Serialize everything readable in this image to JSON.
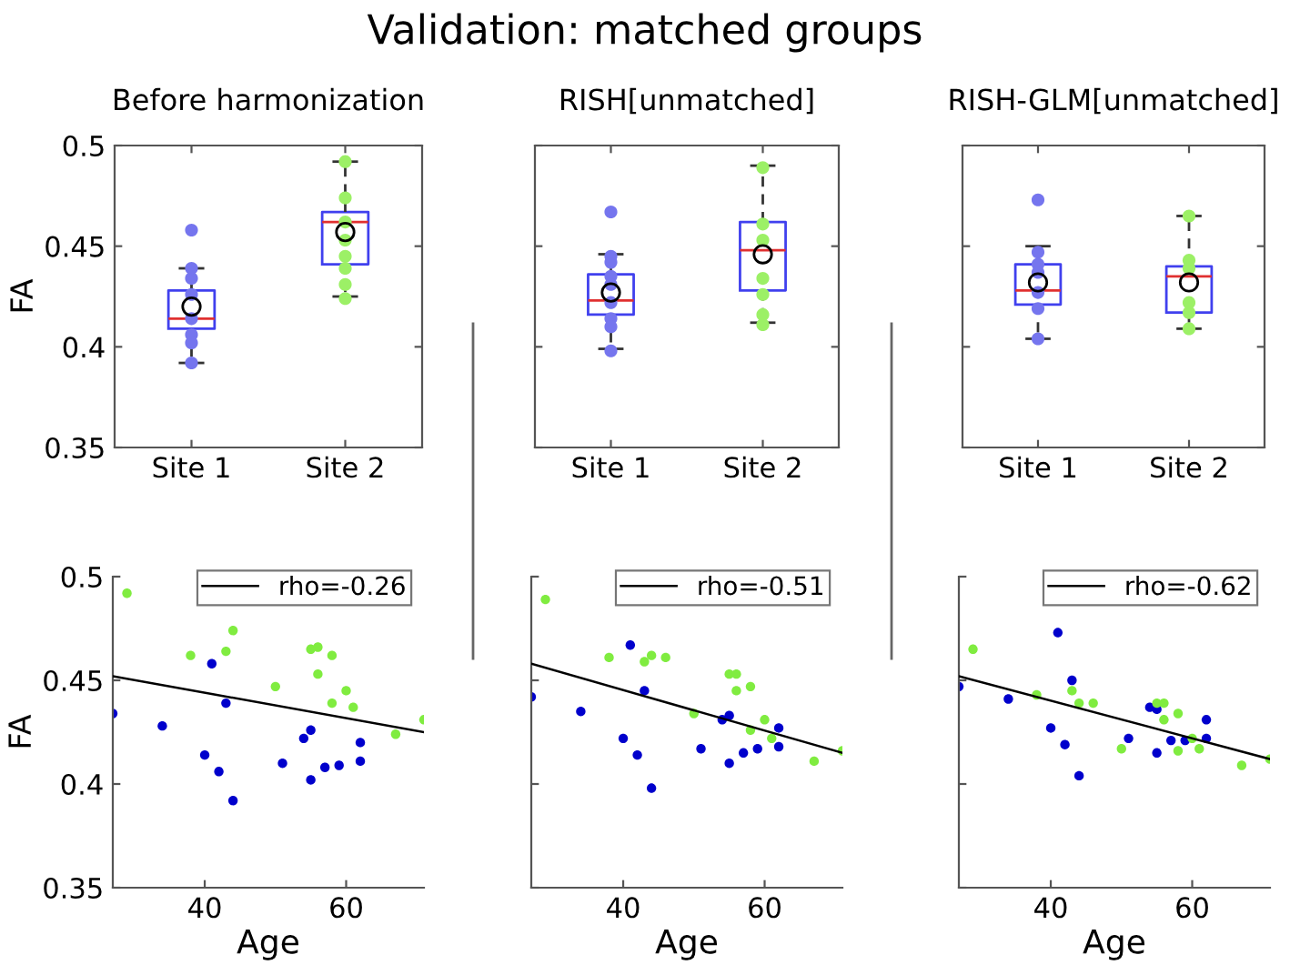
{
  "chart_data": [
    {
      "type": "box",
      "title": "Before harmonization",
      "ylabel": "FA",
      "annotations": [
        "Validation: matched groups"
      ],
      "categories": [
        "Site 1",
        "Site 2"
      ],
      "ylim": [
        0.35,
        0.5
      ],
      "yticks": [
        0.35,
        0.4,
        0.45,
        0.5
      ],
      "grid": false,
      "legend": false,
      "boxes": [
        {
          "low": 0.392,
          "q1": 0.409,
          "median": 0.414,
          "q3": 0.428,
          "high": 0.439,
          "mean": 0.42
        },
        {
          "low": 0.425,
          "q1": 0.441,
          "median": 0.462,
          "q3": 0.467,
          "high": 0.492,
          "mean": 0.457
        }
      ],
      "series": [
        {
          "type": "scatter",
          "x": [
            "Site 1",
            "Site 1",
            "Site 1",
            "Site 1",
            "Site 1",
            "Site 1",
            "Site 1",
            "Site 1",
            "Site 1",
            "Site 1",
            "Site 1",
            "Site 1",
            "Site 1",
            "Site 1",
            "Site 1"
          ],
          "color": "#7575ee",
          "values": [
            0.434,
            null,
            0.414,
            0.458,
            0.406,
            0.439,
            0.392,
            null,
            null,
            0.426,
            0.402,
            null,
            null,
            null,
            null
          ]
        },
        {
          "type": "scatter",
          "x": [
            "Site 2",
            "Site 2",
            "Site 2",
            "Site 2",
            "Site 2",
            "Site 2",
            "Site 2",
            "Site 2",
            "Site 2",
            "Site 2",
            "Site 2",
            "Site 2",
            "Site 2",
            "Site 2"
          ],
          "color": "#9cf066",
          "values": [
            0.492,
            0.462,
            null,
            0.474,
            null,
            null,
            null,
            0.453,
            null,
            0.439,
            0.445,
            null,
            0.424,
            0.431
          ]
        }
      ]
    },
    {
      "type": "box",
      "title": "RISH[unmatched]",
      "categories": [
        "Site 1",
        "Site 2"
      ],
      "ylim": [
        0.35,
        0.5
      ],
      "yticks": [
        0.35,
        0.4,
        0.45,
        0.5
      ],
      "tick_labels": "x",
      "grid": false,
      "legend": false,
      "boxes": [
        {
          "low": 0.399,
          "q1": 0.416,
          "median": 0.423,
          "q3": 0.436,
          "high": 0.446,
          "mean": 0.427
        },
        {
          "low": 0.412,
          "q1": 0.428,
          "median": 0.448,
          "q3": 0.462,
          "high": 0.49,
          "mean": 0.446
        }
      ],
      "series": [
        {
          "type": "scatter",
          "x": [
            "Site 1",
            "Site 1",
            "Site 1",
            "Site 1",
            "Site 1",
            "Site 1",
            "Site 1",
            "Site 1",
            "Site 1",
            "Site 1",
            "Site 1",
            "Site 1",
            "Site 1",
            "Site 1",
            "Site 1"
          ],
          "color": "#7575ee",
          "values": [
            0.442,
            0.435,
            0.422,
            0.467,
            0.414,
            0.445,
            0.398,
            null,
            0.431,
            null,
            0.41,
            null,
            null,
            null,
            null
          ]
        },
        {
          "type": "scatter",
          "x": [
            "Site 2",
            "Site 2",
            "Site 2",
            "Site 2",
            "Site 2",
            "Site 2",
            "Site 2",
            "Site 2",
            "Site 2",
            "Site 2",
            "Site 2",
            "Site 2",
            "Site 2",
            "Site 2",
            "Site 2"
          ],
          "color": "#9cf066",
          "values": [
            0.489,
            0.461,
            null,
            null,
            null,
            0.434,
            0.453,
            null,
            null,
            null,
            0.426,
            null,
            null,
            0.411,
            0.416
          ]
        }
      ]
    },
    {
      "type": "box",
      "title": "RISH-GLM[unmatched]",
      "categories": [
        "Site 1",
        "Site 2"
      ],
      "ylim": [
        0.35,
        0.5
      ],
      "yticks": [
        0.35,
        0.4,
        0.45,
        0.5
      ],
      "tick_labels": "x",
      "grid": false,
      "legend": false,
      "boxes": [
        {
          "low": 0.404,
          "q1": 0.421,
          "median": 0.428,
          "q3": 0.441,
          "high": 0.45,
          "mean": 0.432
        },
        {
          "low": 0.409,
          "q1": 0.417,
          "median": 0.435,
          "q3": 0.44,
          "high": 0.465,
          "mean": 0.432
        }
      ],
      "series": [
        {
          "type": "scatter",
          "x": [
            "Site 1",
            "Site 1",
            "Site 1",
            "Site 1",
            "Site 1",
            "Site 1",
            "Site 1",
            "Site 1",
            "Site 1",
            "Site 1",
            "Site 1",
            "Site 1",
            "Site 1",
            "Site 1",
            "Site 1"
          ],
          "color": "#7575ee",
          "values": [
            0.447,
            0.441,
            0.427,
            0.473,
            0.419,
            null,
            0.404,
            null,
            0.437,
            null,
            null,
            null,
            null,
            null,
            null
          ]
        },
        {
          "type": "scatter",
          "x": [
            "Site 2",
            "Site 2",
            "Site 2",
            "Site 2",
            "Site 2",
            "Site 2",
            "Site 2",
            "Site 2",
            "Site 2",
            "Site 2",
            "Site 2",
            "Site 2",
            "Site 2",
            "Site 2",
            "Site 2"
          ],
          "color": "#9cf066",
          "values": [
            0.465,
            0.443,
            null,
            null,
            null,
            0.417,
            0.439,
            null,
            null,
            null,
            null,
            0.422,
            null,
            0.409,
            null
          ]
        }
      ]
    },
    {
      "type": "scatter",
      "xlabel": "Age",
      "ylabel": "FA",
      "xlim": [
        27,
        71
      ],
      "xticks": [
        40,
        60
      ],
      "ylim": [
        0.35,
        0.5
      ],
      "yticks": [
        0.35,
        0.4,
        0.45,
        0.5
      ],
      "grid": false,
      "legend": "top right",
      "series": [
        {
          "x": [
            27,
            34,
            40,
            41,
            42,
            43,
            44,
            51,
            54,
            55,
            55,
            57,
            59,
            62,
            62
          ],
          "color": "#0000cc",
          "values": [
            0.434,
            0.428,
            0.414,
            0.458,
            0.406,
            0.439,
            0.392,
            0.41,
            0.422,
            0.426,
            0.402,
            0.408,
            0.409,
            0.42,
            0.411
          ]
        },
        {
          "x": [
            29,
            38,
            43,
            44,
            50,
            55,
            56,
            56,
            58,
            58,
            60,
            61,
            67,
            71
          ],
          "color": "#80ec40",
          "values": [
            0.492,
            0.462,
            0.464,
            0.474,
            0.447,
            0.465,
            0.466,
            0.453,
            0.462,
            0.439,
            0.445,
            0.437,
            0.424,
            0.431
          ]
        },
        {
          "type": "line",
          "name": "rho=-0.26",
          "x": [
            27,
            71
          ],
          "color": "#000000",
          "values": [
            0.452,
            0.425
          ]
        }
      ]
    },
    {
      "type": "scatter",
      "xlabel": "Age",
      "xlim": [
        27,
        71
      ],
      "xticks": [
        40,
        60
      ],
      "ylim": [
        0.35,
        0.5
      ],
      "yticks": [
        0.35,
        0.4,
        0.45,
        0.5
      ],
      "tick_labels": "x",
      "grid": false,
      "legend": "top right",
      "series": [
        {
          "x": [
            27,
            34,
            40,
            41,
            42,
            43,
            44,
            51,
            54,
            55,
            55,
            57,
            59,
            62,
            62
          ],
          "color": "#0000cc",
          "values": [
            0.442,
            0.435,
            0.422,
            0.467,
            0.414,
            0.445,
            0.398,
            0.417,
            0.431,
            0.433,
            0.41,
            0.415,
            0.417,
            0.427,
            0.418
          ]
        },
        {
          "x": [
            29,
            38,
            43,
            44,
            46,
            50,
            55,
            56,
            56,
            58,
            58,
            60,
            61,
            67,
            71
          ],
          "color": "#80ec40",
          "values": [
            0.489,
            0.461,
            0.459,
            0.462,
            0.461,
            0.434,
            0.453,
            0.453,
            0.445,
            0.447,
            0.426,
            0.431,
            0.422,
            0.411,
            0.416
          ]
        },
        {
          "type": "line",
          "name": "rho=-0.51",
          "x": [
            27,
            71
          ],
          "color": "#000000",
          "values": [
            0.458,
            0.415
          ]
        }
      ]
    },
    {
      "type": "scatter",
      "xlabel": "Age",
      "xlim": [
        27,
        71
      ],
      "xticks": [
        40,
        60
      ],
      "ylim": [
        0.35,
        0.5
      ],
      "yticks": [
        0.35,
        0.4,
        0.45,
        0.5
      ],
      "tick_labels": "x",
      "grid": false,
      "legend": "top right",
      "series": [
        {
          "x": [
            27,
            34,
            40,
            41,
            42,
            43,
            44,
            51,
            54,
            55,
            55,
            57,
            59,
            62,
            62
          ],
          "color": "#0000cc",
          "values": [
            0.447,
            0.441,
            0.427,
            0.473,
            0.419,
            0.45,
            0.404,
            0.422,
            0.437,
            0.436,
            0.415,
            0.421,
            0.421,
            0.431,
            0.422
          ]
        },
        {
          "x": [
            29,
            38,
            43,
            44,
            46,
            50,
            55,
            56,
            56,
            58,
            58,
            60,
            61,
            67,
            71
          ],
          "color": "#80ec40",
          "values": [
            0.465,
            0.443,
            0.445,
            0.439,
            0.439,
            0.417,
            0.439,
            0.439,
            0.431,
            0.434,
            0.416,
            0.422,
            0.417,
            0.409,
            0.412
          ]
        },
        {
          "type": "line",
          "name": "rho=-0.62",
          "x": [
            27,
            71
          ],
          "color": "#000000",
          "values": [
            0.452,
            0.412
          ]
        }
      ]
    }
  ]
}
